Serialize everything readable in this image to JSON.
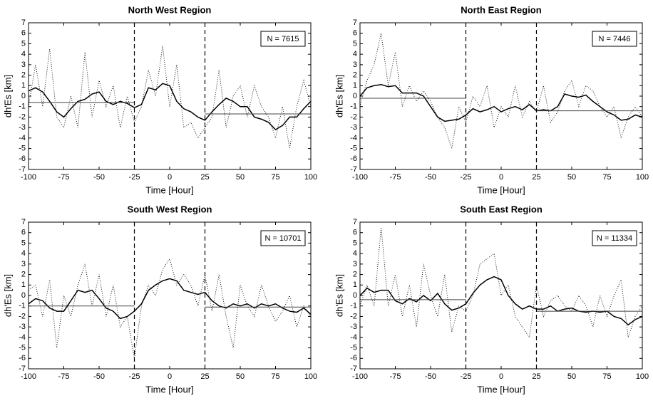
{
  "chart_data": [
    {
      "type": "line",
      "title": "North West Region",
      "xlabel": "Time [Hour]",
      "ylabel": "dh'Es [km]",
      "annotation": "N = 7615",
      "xlim": [
        -100,
        100
      ],
      "ylim": [
        -7,
        7
      ],
      "xticks": [
        -100,
        -75,
        -50,
        -25,
        0,
        25,
        50,
        75,
        100
      ],
      "yticks": [
        -7,
        -6,
        -5,
        -4,
        -3,
        -2,
        -1,
        0,
        1,
        2,
        3,
        4,
        5,
        6,
        7
      ],
      "vlines": [
        -25,
        25
      ],
      "x": [
        -100,
        -95,
        -90,
        -85,
        -80,
        -75,
        -70,
        -65,
        -60,
        -55,
        -50,
        -45,
        -40,
        -35,
        -30,
        -25,
        -20,
        -15,
        -10,
        -5,
        0,
        5,
        10,
        15,
        20,
        25,
        30,
        35,
        40,
        45,
        50,
        55,
        60,
        65,
        70,
        75,
        80,
        85,
        90,
        95,
        100
      ],
      "series": [
        {
          "style": "solid",
          "color": "#000000",
          "values": [
            0.5,
            0.8,
            0.4,
            -0.5,
            -1.5,
            -2.0,
            -1.2,
            -0.5,
            -0.3,
            0.2,
            0.4,
            -0.5,
            -0.8,
            -0.5,
            -0.7,
            -1.1,
            -0.8,
            0.8,
            0.6,
            1.2,
            1.0,
            -0.5,
            -1.2,
            -1.5,
            -2.0,
            -2.3,
            -1.5,
            -0.8,
            -0.2,
            -0.5,
            -1.0,
            -1.0,
            -2.0,
            -2.2,
            -2.5,
            -3.2,
            -2.8,
            -2.0,
            -2.0,
            -1.2,
            -0.5
          ]
        },
        {
          "style": "dotted",
          "color": "#000000",
          "values": [
            -1,
            3,
            -1,
            4.5,
            -2,
            -3,
            0,
            -3,
            4.2,
            -2,
            1.5,
            -1,
            1,
            -3,
            0,
            -2.5,
            -1,
            2.5,
            0,
            4.8,
            -1,
            3,
            -3,
            -2.5,
            -4,
            -3,
            -2,
            2.5,
            -3,
            0,
            1,
            -2,
            1,
            -1,
            -2,
            -4,
            -1,
            -5,
            -1,
            1.5,
            -1
          ]
        },
        {
          "style": "solid",
          "color": "#444444",
          "x": [
            -100,
            -25
          ],
          "values": [
            -0.6,
            -0.6
          ]
        },
        {
          "style": "solid",
          "color": "#444444",
          "x": [
            25,
            100
          ],
          "values": [
            -1.7,
            -1.7
          ]
        }
      ]
    },
    {
      "type": "line",
      "title": "North East Region",
      "xlabel": "Time [Hour]",
      "ylabel": "dh'Es [km]",
      "annotation": "N = 7446",
      "xlim": [
        -100,
        100
      ],
      "ylim": [
        -7,
        7
      ],
      "xticks": [
        -100,
        -75,
        -50,
        -25,
        0,
        25,
        50,
        75,
        100
      ],
      "yticks": [
        -7,
        -6,
        -5,
        -4,
        -3,
        -2,
        -1,
        0,
        1,
        2,
        3,
        4,
        5,
        6,
        7
      ],
      "vlines": [
        -25,
        25
      ],
      "x": [
        -100,
        -95,
        -90,
        -85,
        -80,
        -75,
        -70,
        -65,
        -60,
        -55,
        -50,
        -45,
        -40,
        -35,
        -30,
        -25,
        -20,
        -15,
        -10,
        -5,
        0,
        5,
        10,
        15,
        20,
        25,
        30,
        35,
        40,
        45,
        50,
        55,
        60,
        65,
        70,
        75,
        80,
        85,
        90,
        95,
        100
      ],
      "series": [
        {
          "style": "solid",
          "color": "#000000",
          "values": [
            0,
            0.8,
            1.0,
            1.1,
            0.9,
            1.0,
            0.3,
            0.3,
            0.3,
            0,
            -1.0,
            -2.0,
            -2.4,
            -2.3,
            -2.2,
            -1.8,
            -1.2,
            -1.5,
            -1.3,
            -1.0,
            -1.5,
            -1.2,
            -1.0,
            -1.3,
            -0.8,
            -1.4,
            -1.3,
            -1.4,
            -1.0,
            0.2,
            0.0,
            -0.1,
            0.1,
            -0.5,
            -1.0,
            -1.5,
            -1.8,
            -2.3,
            -2.2,
            -1.8,
            -2.0
          ]
        },
        {
          "style": "dotted",
          "color": "#000000",
          "values": [
            -1,
            1.5,
            3,
            6,
            1,
            4.2,
            -1,
            1,
            -0.5,
            0.5,
            -0.5,
            -2,
            -3,
            -5,
            -1,
            -2.5,
            0,
            -1,
            1,
            -3,
            -1,
            -2,
            1,
            -2,
            -0.5,
            -1.5,
            1,
            -2.5,
            -1.5,
            0.5,
            1.5,
            -1,
            1,
            0.5,
            -1,
            -2,
            -1,
            -4,
            -2,
            -1,
            -2
          ]
        },
        {
          "style": "solid",
          "color": "#444444",
          "x": [
            -100,
            -25
          ],
          "values": [
            -0.2,
            -0.2
          ]
        },
        {
          "style": "solid",
          "color": "#444444",
          "x": [
            25,
            100
          ],
          "values": [
            -1.4,
            -1.4
          ]
        }
      ]
    },
    {
      "type": "line",
      "title": "South West Region",
      "xlabel": "Time [Hour]",
      "ylabel": "dh'Es [km]",
      "annotation": "N = 10701",
      "xlim": [
        -100,
        100
      ],
      "ylim": [
        -7,
        7
      ],
      "xticks": [
        -100,
        -75,
        -50,
        -25,
        0,
        25,
        50,
        75,
        100
      ],
      "yticks": [
        -7,
        -6,
        -5,
        -4,
        -3,
        -2,
        -1,
        0,
        1,
        2,
        3,
        4,
        5,
        6,
        7
      ],
      "vlines": [
        -25,
        25
      ],
      "x": [
        -100,
        -95,
        -90,
        -85,
        -80,
        -75,
        -70,
        -65,
        -60,
        -55,
        -50,
        -45,
        -40,
        -35,
        -30,
        -25,
        -20,
        -15,
        -10,
        -5,
        0,
        5,
        10,
        15,
        20,
        25,
        30,
        35,
        40,
        45,
        50,
        55,
        60,
        65,
        70,
        75,
        80,
        85,
        90,
        95,
        100
      ],
      "series": [
        {
          "style": "solid",
          "color": "#000000",
          "values": [
            -0.8,
            -0.3,
            -0.5,
            -1.2,
            -1.5,
            -1.5,
            -0.5,
            0.5,
            0.3,
            0.5,
            -0.3,
            -1.2,
            -1.5,
            -2.2,
            -2.0,
            -1.5,
            -0.8,
            0.5,
            1.0,
            1.4,
            1.6,
            1.4,
            0.5,
            0.3,
            0.1,
            0.3,
            -0.5,
            -1.0,
            -1.2,
            -0.8,
            -1.0,
            -0.8,
            -1.2,
            -0.8,
            -1.0,
            -0.8,
            -1.2,
            -1.5,
            -1.6,
            -1.2,
            -1.8
          ]
        },
        {
          "style": "dotted",
          "color": "#000000",
          "values": [
            0.5,
            1,
            -2,
            1.5,
            -5,
            0,
            -2,
            1,
            3,
            -1,
            2,
            -2,
            1,
            -3,
            -2,
            -6,
            -1,
            1,
            0,
            2.5,
            3.5,
            1,
            2,
            1,
            -1,
            2,
            -1.5,
            2,
            -2,
            -5,
            1,
            -1,
            -2,
            1,
            -1,
            -2.5,
            -1.5,
            0,
            -3,
            -1,
            -2
          ]
        },
        {
          "style": "solid",
          "color": "#444444",
          "x": [
            -100,
            -25
          ],
          "values": [
            -1.0,
            -1.0
          ]
        },
        {
          "style": "solid",
          "color": "#444444",
          "x": [
            25,
            100
          ],
          "values": [
            -1.1,
            -1.1
          ]
        }
      ]
    },
    {
      "type": "line",
      "title": "South East Region",
      "xlabel": "Time [Hour]",
      "ylabel": "dh'Es [km]",
      "annotation": "N = 11334",
      "xlim": [
        -100,
        100
      ],
      "ylim": [
        -7,
        7
      ],
      "xticks": [
        -100,
        -75,
        -50,
        -25,
        0,
        25,
        50,
        75,
        100
      ],
      "yticks": [
        -7,
        -6,
        -5,
        -4,
        -3,
        -2,
        -1,
        0,
        1,
        2,
        3,
        4,
        5,
        6,
        7
      ],
      "vlines": [
        -25,
        25
      ],
      "x": [
        -100,
        -95,
        -90,
        -85,
        -80,
        -75,
        -70,
        -65,
        -60,
        -55,
        -50,
        -45,
        -40,
        -35,
        -30,
        -25,
        -20,
        -15,
        -10,
        -5,
        0,
        5,
        10,
        15,
        20,
        25,
        30,
        35,
        40,
        45,
        50,
        55,
        60,
        65,
        70,
        75,
        80,
        85,
        90,
        95,
        100
      ],
      "series": [
        {
          "style": "solid",
          "color": "#000000",
          "values": [
            0,
            0.7,
            0.3,
            0.5,
            0.5,
            -0.5,
            -0.8,
            -0.3,
            -0.6,
            0.0,
            -0.5,
            0.2,
            -0.8,
            -1.4,
            -1.2,
            -0.8,
            0.2,
            1.0,
            1.5,
            1.8,
            1.5,
            0.0,
            -0.8,
            -1.3,
            -1.0,
            -1.3,
            -1.3,
            -1.0,
            -1.5,
            -1.3,
            -1.2,
            -1.5,
            -1.6,
            -1.5,
            -1.6,
            -1.5,
            -2.0,
            -2.2,
            -2.8,
            -2.3,
            -2.0
          ]
        },
        {
          "style": "dotted",
          "color": "#000000",
          "values": [
            -1,
            1,
            -1,
            6.5,
            -1,
            2,
            -2,
            1,
            -3,
            3,
            0,
            -2,
            2,
            -3.5,
            -1,
            -1.5,
            0,
            3,
            3.5,
            4,
            0,
            1,
            -2,
            -3,
            -4,
            1,
            -2,
            -0.5,
            0,
            -1,
            -1.5,
            0,
            -1,
            -3,
            0,
            -2,
            0,
            1.5,
            -4,
            -2,
            -1
          ]
        },
        {
          "style": "solid",
          "color": "#444444",
          "x": [
            -100,
            -25
          ],
          "values": [
            -0.4,
            -0.4
          ]
        },
        {
          "style": "solid",
          "color": "#444444",
          "x": [
            25,
            100
          ],
          "values": [
            -1.5,
            -1.5
          ]
        }
      ]
    }
  ]
}
